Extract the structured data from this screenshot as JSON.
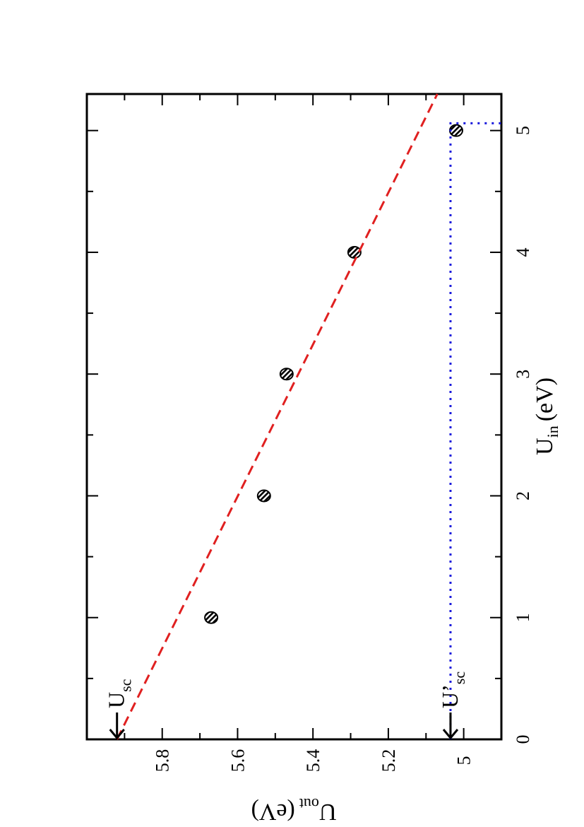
{
  "chart_data": {
    "type": "scatter",
    "x_axis": {
      "title_main": "U",
      "title_sub": "in",
      "title_unit": "(eV)",
      "range": [
        0,
        5.3
      ],
      "major_ticks": [
        0,
        1,
        2,
        3,
        4,
        5
      ],
      "minor_ticks": [
        0.5,
        1.5,
        2.5,
        3.5,
        4.5
      ],
      "tick_labels": [
        "0",
        "1",
        "2",
        "3",
        "4",
        "5"
      ]
    },
    "y_axis": {
      "title_main": "U",
      "title_sub": "out",
      "title_unit": "(eV)",
      "range": [
        4.9,
        6.0
      ],
      "major_ticks": [
        5.0,
        5.2,
        5.4,
        5.6,
        5.8
      ],
      "minor_ticks": [
        5.1,
        5.3,
        5.5,
        5.7,
        5.9
      ],
      "tick_labels": [
        "5",
        "5.2",
        "5.4",
        "5.6",
        "5.8"
      ]
    },
    "series": [
      {
        "kind": "points",
        "marker": "hatched-circle",
        "color": "#000000",
        "x": [
          1,
          2,
          3,
          4,
          5
        ],
        "y": [
          5.67,
          5.53,
          5.47,
          5.29,
          5.02
        ]
      },
      {
        "kind": "fit-line",
        "style": "dashed",
        "color": "#e02020",
        "x": [
          0,
          5.3
        ],
        "y": [
          5.92,
          5.07
        ]
      },
      {
        "kind": "guide-line",
        "style": "dotted",
        "color": "#1a1adc",
        "x": [
          0,
          5.06,
          5.06
        ],
        "y": [
          5.035,
          5.035,
          4.9
        ]
      }
    ],
    "annotations": [
      {
        "id": "usc",
        "main": "U",
        "sub": "sc",
        "arrow_to": [
          0,
          5.92
        ]
      },
      {
        "id": "usc-prime",
        "main": "U’",
        "sub": "sc",
        "arrow_to": [
          0,
          5.035
        ]
      }
    ],
    "grid": false,
    "legend": "none",
    "orientation": "rotated-90-clockwise"
  }
}
